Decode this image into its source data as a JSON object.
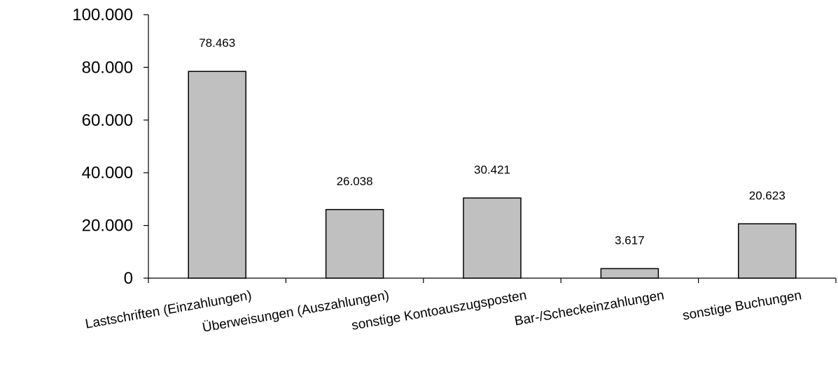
{
  "chart_data": {
    "type": "bar",
    "title": "",
    "xlabel": "",
    "ylabel": "",
    "categories": [
      "Lastschriften (Einzahlungen)",
      "Überweisungen (Auszahlungen)",
      "sonstige Kontoauszugsposten",
      "Bar-/Scheckeinzahlungen",
      "sonstige Buchungen"
    ],
    "values": [
      78463,
      26038,
      30421,
      3617,
      20623
    ],
    "data_labels": [
      "78.463",
      "26.038",
      "30.421",
      "3.617",
      "20.623"
    ],
    "ylim": [
      0,
      100000
    ],
    "y_ticks": [
      0,
      20000,
      40000,
      60000,
      80000,
      100000
    ],
    "y_tick_labels": [
      "0",
      "20.000",
      "40.000",
      "60.000",
      "80.000",
      "100.000"
    ],
    "grid": false,
    "legend": "none",
    "bar_color": "#c0c0c0"
  }
}
